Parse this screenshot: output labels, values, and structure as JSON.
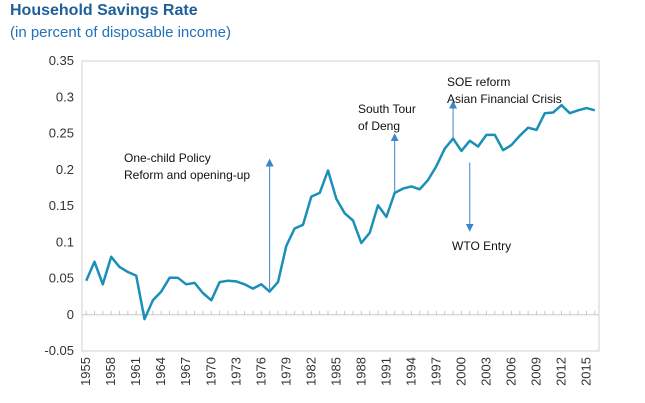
{
  "chart_data": {
    "type": "line",
    "title": "Household Savings Rate",
    "subtitle": "(in percent of disposable income)",
    "xlabel": "",
    "ylabel": "",
    "ylim": [
      -0.05,
      0.35
    ],
    "yticks": [
      -0.05,
      0,
      0.05,
      0.1,
      0.15,
      0.2,
      0.25,
      0.3,
      0.35
    ],
    "ytick_labels": [
      "-0.05",
      "0",
      "0.05",
      "0.1",
      "0.15",
      "0.2",
      "0.25",
      "0.3",
      "0.35"
    ],
    "xlim": [
      1955,
      2016
    ],
    "xtick_labels": [
      "1955",
      "1958",
      "1961",
      "1964",
      "1967",
      "1970",
      "1973",
      "1976",
      "1979",
      "1982",
      "1985",
      "1988",
      "1991",
      "1994",
      "1997",
      "2000",
      "2003",
      "2006",
      "2009",
      "2012",
      "2015"
    ],
    "series": [
      {
        "name": "Household Savings Rate",
        "color": "#1a8fb8",
        "x": [
          1955,
          1956,
          1957,
          1958,
          1959,
          1960,
          1961,
          1962,
          1963,
          1964,
          1965,
          1966,
          1967,
          1968,
          1969,
          1970,
          1971,
          1972,
          1973,
          1974,
          1975,
          1976,
          1977,
          1978,
          1979,
          1980,
          1981,
          1982,
          1983,
          1984,
          1985,
          1986,
          1987,
          1988,
          1989,
          1990,
          1991,
          1992,
          1993,
          1994,
          1995,
          1996,
          1997,
          1998,
          1999,
          2000,
          2001,
          2002,
          2003,
          2004,
          2005,
          2006,
          2007,
          2008,
          2009,
          2010,
          2011,
          2012,
          2013,
          2014,
          2015,
          2016
        ],
        "values": [
          0.047,
          0.073,
          0.042,
          0.08,
          0.066,
          0.059,
          0.054,
          -0.006,
          0.02,
          0.032,
          0.051,
          0.051,
          0.042,
          0.044,
          0.03,
          0.02,
          0.045,
          0.047,
          0.046,
          0.042,
          0.036,
          0.042,
          0.032,
          0.045,
          0.095,
          0.119,
          0.124,
          0.163,
          0.168,
          0.199,
          0.16,
          0.14,
          0.13,
          0.099,
          0.113,
          0.151,
          0.135,
          0.168,
          0.174,
          0.177,
          0.173,
          0.186,
          0.205,
          0.229,
          0.243,
          0.226,
          0.24,
          0.232,
          0.248,
          0.248,
          0.227,
          0.234,
          0.247,
          0.258,
          0.255,
          0.278,
          0.279,
          0.289,
          0.278,
          0.282,
          0.285,
          0.282
        ]
      }
    ],
    "annotations": [
      {
        "lines": [
          "One-child Policy",
          "Reform and opening-up"
        ],
        "year": 1977,
        "arrow_from": 0.032,
        "arrow_to": 0.21
      },
      {
        "lines": [
          "South Tour",
          "of Deng"
        ],
        "year": 1992,
        "arrow_from": 0.17,
        "arrow_to": 0.245
      },
      {
        "lines": [
          "SOE reform",
          "Asian Financial Crisis"
        ],
        "year": 1999,
        "arrow_from": 0.243,
        "arrow_to": 0.29
      },
      {
        "lines": [
          "WTO Entry"
        ],
        "year": 2001,
        "arrow_from": 0.21,
        "arrow_to": 0.12
      }
    ]
  }
}
